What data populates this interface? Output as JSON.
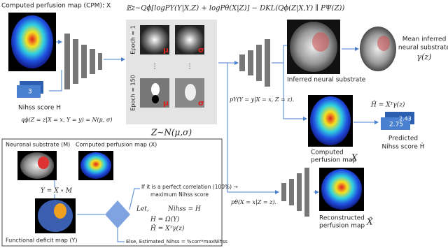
{
  "header": {
    "title": "Computed perfusion map (CPM): X",
    "objective": "𝔼z∼Qϕ[logPY(Y|X,Z) + logPθ(X|Z)] − DKL(Qϕ(Z|X,Y) ∥ PΨ(Z))"
  },
  "input": {
    "nihss_card": "3",
    "nihss_label": "Nihss score H",
    "encoder": "qϕ(Z = z|X = x, Y = y) = N(μ, σ)"
  },
  "latent": {
    "epoch_first": "Epoch = 1",
    "epoch_last": "Epoch = 150",
    "mu": "μ",
    "sigma": "σ",
    "dots": "⋮",
    "distribution": "Z∼N(μ,σ)"
  },
  "decoder_y": {
    "formula": "pY(Y = y|X = x, Z = z).",
    "inferred_label": "Inferred neural substrate",
    "mean_label": [
      "Mean inferred",
      "neural substrate",
      "γ(z)"
    ]
  },
  "prediction": {
    "formula": "Ĥ = Xᵀγ(z)",
    "cards": [
      "2.43",
      "2.75"
    ],
    "label": [
      "Predicted",
      "Nihss score Ĥ"
    ],
    "cpm_label": [
      "Computed",
      "perfusion map"
    ],
    "cpm_symbol": "X"
  },
  "decoder_x": {
    "formula": "pθ(X = x|Z = z).",
    "label": [
      "Reconstructed",
      "perfusion map"
    ],
    "symbol": "X̂"
  },
  "inset": {
    "substrate": "Neuronal substrate (M)",
    "cpm": "Computed perfusion map (X)",
    "product": "Y = X ∘ M",
    "deficit": "Functional deficit map (Y)",
    "if_line": [
      "If it is a perfect correlation (100%) →",
      "maximum Nihss score"
    ],
    "let": "Let,",
    "nihss": "Nihss = H",
    "h": "H   =   Ω(Y)",
    "h_hat": "Ĥ   =   Xᵀγ(z)",
    "else_line": "Else, Estimated_Nihss = %corr*maxNihss"
  }
}
